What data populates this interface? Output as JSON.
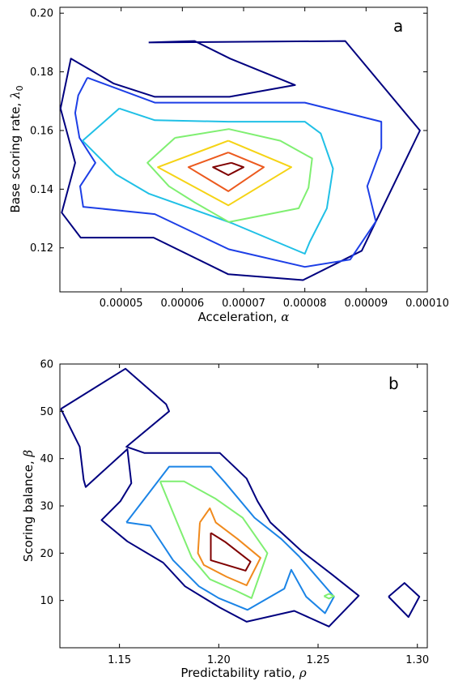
{
  "chart_data": [
    {
      "type": "contour",
      "panel_label": "a",
      "xlabel": {
        "text": "Acceleration, ",
        "symbol": "α"
      },
      "ylabel": {
        "text": "Base scoring rate, ",
        "symbol": "λ",
        "subscript": "0"
      },
      "xlim": [
        4e-05,
        0.0001
      ],
      "ylim": [
        0.105,
        0.202
      ],
      "xticks": [
        {
          "value": 5e-05,
          "label": "0.00005"
        },
        {
          "value": 6e-05,
          "label": "0.00006"
        },
        {
          "value": 7e-05,
          "label": "0.00007"
        },
        {
          "value": 8e-05,
          "label": "0.00008"
        },
        {
          "value": 9e-05,
          "label": "0.00009"
        },
        {
          "value": 0.0001,
          "label": "0.00010"
        }
      ],
      "yticks": [
        {
          "value": 0.12,
          "label": "0.12"
        },
        {
          "value": 0.14,
          "label": "0.14"
        },
        {
          "value": 0.16,
          "label": "0.16"
        },
        {
          "value": 0.18,
          "label": "0.18"
        },
        {
          "value": 0.2,
          "label": "0.20"
        }
      ],
      "contours": [
        {
          "level": 1,
          "color": "#00007f",
          "points": [
            [
              5.45e-05,
              0.19
            ],
            [
              8.66e-05,
              0.1905
            ],
            [
              9.88e-05,
              0.16
            ],
            [
              8.93e-05,
              0.119
            ],
            [
              7.97e-05,
              0.109
            ],
            [
              6.75e-05,
              0.111
            ],
            [
              5.53e-05,
              0.1235
            ],
            [
              4.34e-05,
              0.1235
            ],
            [
              4.03e-05,
              0.132
            ],
            [
              4.25e-05,
              0.149
            ],
            [
              4.01e-05,
              0.1675
            ],
            [
              4.18e-05,
              0.1845
            ],
            [
              4.88e-05,
              0.176
            ],
            [
              5.55e-05,
              0.1715
            ],
            [
              6.77e-05,
              0.1715
            ],
            [
              7.84e-05,
              0.1755
            ],
            [
              6.78e-05,
              0.1845
            ],
            [
              6.2e-05,
              0.1905
            ],
            [
              5.45e-05,
              0.19
            ]
          ]
        },
        {
          "level": 2,
          "color": "#1d3fe6",
          "points": [
            [
              4.45e-05,
              0.178
            ],
            [
              4.3e-05,
              0.172
            ],
            [
              4.25e-05,
              0.166
            ],
            [
              4.32e-05,
              0.1575
            ],
            [
              4.58e-05,
              0.149
            ],
            [
              4.33e-05,
              0.141
            ],
            [
              4.38e-05,
              0.134
            ],
            [
              5.55e-05,
              0.1315
            ],
            [
              6.76e-05,
              0.1195
            ],
            [
              8e-05,
              0.1135
            ],
            [
              8.74e-05,
              0.116
            ],
            [
              9.16e-05,
              0.129
            ],
            [
              9.02e-05,
              0.141
            ],
            [
              9.25e-05,
              0.154
            ],
            [
              9.25e-05,
              0.163
            ],
            [
              8e-05,
              0.1695
            ],
            [
              6.75e-05,
              0.1695
            ],
            [
              5.55e-05,
              0.1695
            ],
            [
              4.45e-05,
              0.178
            ]
          ]
        },
        {
          "level": 3,
          "color": "#20c0e6",
          "points": [
            [
              4.97e-05,
              0.1675
            ],
            [
              4.37e-05,
              0.1565
            ],
            [
              4.92e-05,
              0.145
            ],
            [
              5.45e-05,
              0.1385
            ],
            [
              6.8e-05,
              0.1285
            ],
            [
              8e-05,
              0.118
            ],
            [
              8.08e-05,
              0.122
            ],
            [
              8.36e-05,
              0.1335
            ],
            [
              8.46e-05,
              0.147
            ],
            [
              8.26e-05,
              0.159
            ],
            [
              8e-05,
              0.163
            ],
            [
              6.75e-05,
              0.163
            ],
            [
              5.55e-05,
              0.1635
            ],
            [
              4.97e-05,
              0.1675
            ]
          ]
        },
        {
          "level": 4,
          "color": "#7fef71",
          "points": [
            [
              5.88e-05,
              0.1575
            ],
            [
              6.76e-05,
              0.1605
            ],
            [
              7.6e-05,
              0.1565
            ],
            [
              8.12e-05,
              0.1505
            ],
            [
              8.06e-05,
              0.1405
            ],
            [
              7.9e-05,
              0.1335
            ],
            [
              6.76e-05,
              0.1288
            ],
            [
              6.2e-05,
              0.1355
            ],
            [
              5.78e-05,
              0.141
            ],
            [
              5.43e-05,
              0.149
            ],
            [
              5.88e-05,
              0.1575
            ]
          ]
        },
        {
          "level": 5,
          "color": "#f5d315",
          "points": [
            [
              6.75e-05,
              0.1565
            ],
            [
              7.78e-05,
              0.1475
            ],
            [
              6.75e-05,
              0.1345
            ],
            [
              5.6e-05,
              0.1475
            ],
            [
              6.75e-05,
              0.1565
            ]
          ]
        },
        {
          "level": 6,
          "color": "#ec5a1e",
          "points": [
            [
              6.75e-05,
              0.1525
            ],
            [
              7.33e-05,
              0.1475
            ],
            [
              6.75e-05,
              0.1393
            ],
            [
              6.1e-05,
              0.1475
            ],
            [
              6.75e-05,
              0.1525
            ]
          ]
        },
        {
          "level": 7,
          "color": "#7f0000",
          "points": [
            [
              6.8e-05,
              0.149
            ],
            [
              7e-05,
              0.1475
            ],
            [
              6.75e-05,
              0.1448
            ],
            [
              6.5e-05,
              0.1475
            ],
            [
              6.8e-05,
              0.149
            ]
          ]
        }
      ]
    },
    {
      "type": "contour",
      "panel_label": "b",
      "xlabel": {
        "text": "Predictability ratio, ",
        "symbol": "ρ"
      },
      "ylabel": {
        "text": "Scoring balance, ",
        "symbol": "β",
        "subscript": ""
      },
      "xlim": [
        1.12,
        1.305
      ],
      "ylim": [
        0,
        60
      ],
      "xticks": [
        {
          "value": 1.15,
          "label": "1.15"
        },
        {
          "value": 1.2,
          "label": "1.20"
        },
        {
          "value": 1.25,
          "label": "1.25"
        },
        {
          "value": 1.3,
          "label": "1.30"
        }
      ],
      "yticks": [
        {
          "value": 10,
          "label": "10"
        },
        {
          "value": 20,
          "label": "20"
        },
        {
          "value": 30,
          "label": "30"
        },
        {
          "value": 40,
          "label": "40"
        },
        {
          "value": 50,
          "label": "50"
        },
        {
          "value": 60,
          "label": "60"
        }
      ],
      "contours": [
        {
          "level": 1,
          "color": "#00007f",
          "points": [
            [
              1.1205,
              50.5
            ],
            [
              1.153,
              59.0
            ],
            [
              1.1735,
              51.5
            ],
            [
              1.175,
              50.0
            ],
            [
              1.1535,
              42.5
            ],
            [
              1.1625,
              41.2
            ],
            [
              1.175,
              41.2
            ],
            [
              1.2005,
              41.2
            ],
            [
              1.214,
              35.8
            ],
            [
              1.2195,
              31.0
            ],
            [
              1.226,
              26.5
            ],
            [
              1.2415,
              20.5
            ],
            [
              1.257,
              15.5
            ],
            [
              1.2705,
              11.0
            ],
            [
              1.2555,
              4.5
            ],
            [
              1.238,
              7.8
            ],
            [
              1.214,
              5.5
            ],
            [
              1.2005,
              8.5
            ],
            [
              1.183,
              13.0
            ],
            [
              1.172,
              18.0
            ],
            [
              1.154,
              22.5
            ],
            [
              1.141,
              27.0
            ],
            [
              1.1505,
              31.0
            ],
            [
              1.156,
              34.8
            ],
            [
              1.154,
              42.0
            ],
            [
              1.133,
              34.0
            ],
            [
              1.132,
              35.5
            ],
            [
              1.13,
              42.5
            ],
            [
              1.1205,
              50.5
            ]
          ]
        },
        {
          "level": 1,
          "color": "#00007f",
          "points": [
            [
              1.2855,
              10.8
            ],
            [
              1.2935,
              13.7
            ],
            [
              1.301,
              10.8
            ],
            [
              1.2955,
              6.5
            ],
            [
              1.2855,
              10.8
            ]
          ]
        },
        {
          "level": 2,
          "color": "#1b84e6",
          "points": [
            [
              1.1535,
              26.5
            ],
            [
              1.175,
              38.3
            ],
            [
              1.196,
              38.3
            ],
            [
              1.203,
              35.0
            ],
            [
              1.218,
              27.5
            ],
            [
              1.2315,
              23.0
            ],
            [
              1.2405,
              19.3
            ],
            [
              1.258,
              10.8
            ],
            [
              1.2535,
              7.3
            ],
            [
              1.244,
              10.8
            ],
            [
              1.2365,
              16.5
            ],
            [
              1.233,
              12.5
            ],
            [
              1.2145,
              8.0
            ],
            [
              1.2,
              10.5
            ],
            [
              1.19,
              13.0
            ],
            [
              1.177,
              18.5
            ],
            [
              1.1655,
              25.8
            ],
            [
              1.1535,
              26.5
            ]
          ]
        },
        {
          "level": 3,
          "color": "#7fef71",
          "points": [
            [
              1.1705,
              35.2
            ],
            [
              1.1825,
              35.2
            ],
            [
              1.1985,
              31.5
            ],
            [
              1.212,
              27.5
            ],
            [
              1.2245,
              20.0
            ],
            [
              1.2165,
              10.5
            ],
            [
              1.209,
              12.0
            ],
            [
              1.1955,
              14.5
            ],
            [
              1.1865,
              19.0
            ],
            [
              1.179,
              26.5
            ],
            [
              1.1705,
              35.2
            ]
          ]
        },
        {
          "level": 3,
          "color": "#7fef71",
          "points": [
            [
              1.253,
              10.9
            ],
            [
              1.2555,
              11.4
            ],
            [
              1.258,
              10.9
            ],
            [
              1.2555,
              10.4
            ],
            [
              1.253,
              10.9
            ]
          ]
        },
        {
          "level": 4,
          "color": "#f08a1d",
          "points": [
            [
              1.1905,
              26.5
            ],
            [
              1.1955,
              29.5
            ],
            [
              1.1985,
              26.5
            ],
            [
              1.2095,
              23.0
            ],
            [
              1.221,
              19.0
            ],
            [
              1.214,
              13.2
            ],
            [
              1.204,
              15.0
            ],
            [
              1.1925,
              17.5
            ],
            [
              1.1895,
              20.0
            ],
            [
              1.1905,
              26.5
            ]
          ]
        },
        {
          "level": 5,
          "color": "#7f0000",
          "points": [
            [
              1.196,
              24.3
            ],
            [
              1.2035,
              22.3
            ],
            [
              1.216,
              18.2
            ],
            [
              1.2135,
              16.3
            ],
            [
              1.196,
              18.5
            ],
            [
              1.196,
              24.3
            ]
          ]
        }
      ]
    }
  ]
}
